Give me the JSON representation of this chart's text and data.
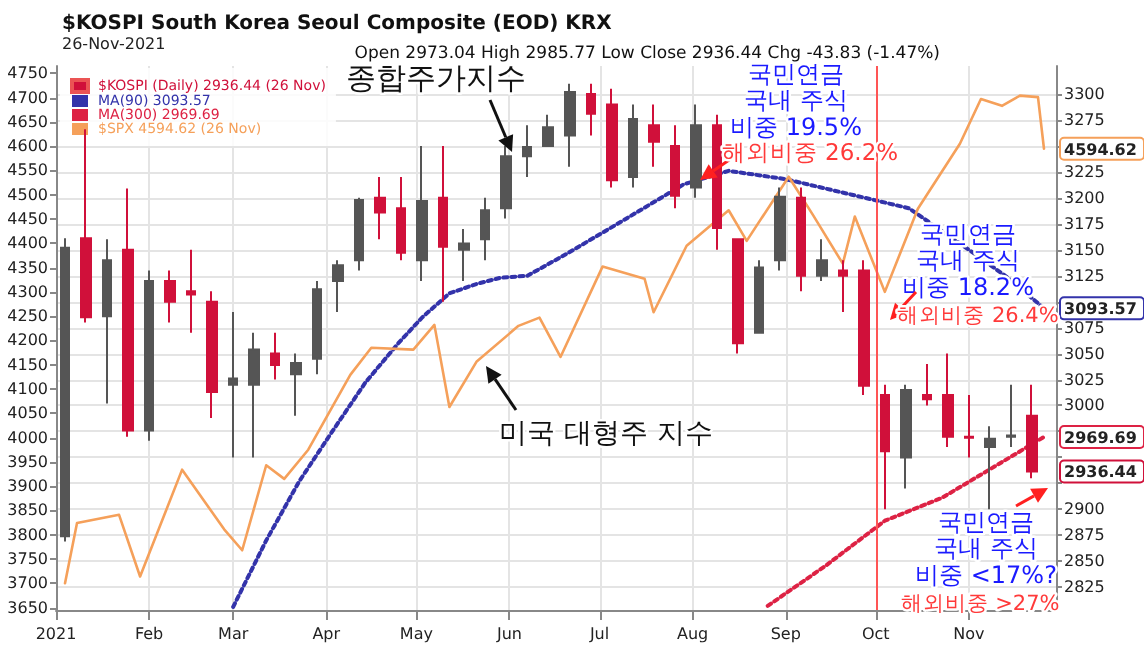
{
  "chart_data": {
    "type": "candlestick",
    "title": "$KOSPI South Korea Seoul Composite (EOD) KRX",
    "subtitle": "26-Nov-2021",
    "xlim": [
      "2021-01-01",
      "2021-11-30"
    ],
    "xticks": [
      {
        "value": "2021-01-01",
        "label": "2021"
      },
      {
        "value": "2021-02-01",
        "label": "Feb"
      },
      {
        "value": "2021-03-01",
        "label": "Mar"
      },
      {
        "value": "2021-04-01",
        "label": "Apr"
      },
      {
        "value": "2021-05-01",
        "label": "May"
      },
      {
        "value": "2021-06-01",
        "label": "Jun"
      },
      {
        "value": "2021-07-01",
        "label": "Jul"
      },
      {
        "value": "2021-08-01",
        "label": "Aug"
      },
      {
        "value": "2021-09-01",
        "label": "Sep"
      },
      {
        "value": "2021-10-01",
        "label": "Oct"
      },
      {
        "value": "2021-11-01",
        "label": "Nov"
      }
    ],
    "ylim": [
      3645,
      4765
    ],
    "yticks": [
      3650,
      3700,
      3750,
      3800,
      3850,
      3900,
      3950,
      4000,
      4050,
      4100,
      4150,
      4200,
      4250,
      4300,
      4350,
      4400,
      4450,
      4500,
      4550,
      4600,
      4650,
      4700,
      4750
    ],
    "y2lim": [
      2803,
      3327
    ],
    "y2ticks": [
      2825,
      2850,
      2875,
      2900,
      {
        "value": 2925,
        "label": null
      },
      {
        "value": 2950,
        "label": null
      },
      {
        "value": 2975,
        "label": null
      },
      3000,
      3025,
      3050,
      3075,
      {
        "value": 3100,
        "label": null
      },
      3125,
      3150,
      3175,
      3200,
      3225,
      {
        "value": 3250,
        "label": null
      },
      3275,
      3300
    ],
    "grid": true,
    "legend": "top left",
    "series": [
      {
        "name": "$KOSPI (Daily) 2936.44 (26 Nov)",
        "axis": "y2",
        "colors": [
          "#555555",
          "#d0103a",
          "#555555",
          "#d0103a",
          "#555555",
          "#d0103a",
          "#d0103a",
          "#d0103a",
          "#555555",
          "#555555",
          "#d0103a",
          "#555555",
          "#555555",
          "#555555",
          "#555555",
          "#d0103a",
          "#d0103a",
          "#555555",
          "#d0103a",
          "#555555",
          "#555555",
          "#555555",
          "#555555",
          "#555555",
          "#555555",
          "#d0103a",
          "#d0103a",
          "#555555",
          "#d0103a",
          "#d0103a",
          "#555555",
          "#d0103a",
          "#d0103a",
          "#555555",
          "#555555",
          "#d0103a",
          "#555555",
          "#d0103a",
          "#d0103a",
          "#d0103a",
          "#555555",
          "#d0103a",
          "#d0103a",
          "#d0103a",
          "#555555",
          "#555555",
          "#d0103a"
        ],
        "x": [
          "2021-01-04",
          "2021-01-11",
          "2021-01-18",
          "2021-01-25",
          "2021-02-01",
          "2021-02-08",
          "2021-02-15",
          "2021-02-22",
          "2021-03-01",
          "2021-03-08",
          "2021-03-15",
          "2021-03-22",
          "2021-03-29",
          "2021-04-05",
          "2021-04-12",
          "2021-04-19",
          "2021-04-26",
          "2021-05-03",
          "2021-05-10",
          "2021-05-17",
          "2021-05-24",
          "2021-05-31",
          "2021-06-07",
          "2021-06-14",
          "2021-06-21",
          "2021-06-28",
          "2021-07-05",
          "2021-07-12",
          "2021-07-19",
          "2021-07-26",
          "2021-08-02",
          "2021-08-09",
          "2021-08-16",
          "2021-08-23",
          "2021-08-30",
          "2021-09-06",
          "2021-09-13",
          "2021-09-20",
          "2021-09-27",
          "2021-10-04",
          "2021-10-11",
          "2021-10-18",
          "2021-10-25",
          "2021-11-01",
          "2021-11-08",
          "2021-11-15",
          "2021-11-22"
        ],
        "ohlc": [
          [
            2874,
            3161,
            2869,
            3152
          ],
          [
            3161,
            3266,
            3080,
            3085
          ],
          [
            3086,
            3160,
            3002,
            3140
          ],
          [
            3150,
            3209,
            2970,
            2976
          ],
          [
            2976,
            3130,
            2966,
            3120
          ],
          [
            3120,
            3130,
            3080,
            3100
          ],
          [
            3110,
            3150,
            3070,
            3107
          ],
          [
            3100,
            3110,
            2988,
            3013
          ],
          [
            3020,
            3090,
            2950,
            3026
          ],
          [
            3020,
            3070,
            2950,
            3054
          ],
          [
            3050,
            3070,
            3025,
            3039
          ],
          [
            3030,
            3050,
            2990,
            3041
          ],
          [
            3045,
            3120,
            3030,
            3112
          ],
          [
            3120,
            3140,
            3090,
            3135
          ],
          [
            3140,
            3200,
            3130,
            3198
          ],
          [
            3200,
            3220,
            3160,
            3186
          ],
          [
            3190,
            3220,
            3140,
            3147
          ],
          [
            3140,
            3250,
            3120,
            3197
          ],
          [
            3200,
            3250,
            3100,
            3153
          ],
          [
            3150,
            3170,
            3120,
            3156
          ],
          [
            3160,
            3200,
            3140,
            3188
          ],
          [
            3190,
            3250,
            3180,
            3240
          ],
          [
            3240,
            3270,
            3220,
            3249
          ],
          [
            3250,
            3280,
            3250,
            3268
          ],
          [
            3260,
            3310,
            3230,
            3302
          ],
          [
            3300,
            3310,
            3260,
            3281
          ],
          [
            3290,
            3305,
            3210,
            3217
          ],
          [
            3220,
            3290,
            3210,
            3276
          ],
          [
            3270,
            3290,
            3230,
            3254
          ],
          [
            3250,
            3270,
            3190,
            3202
          ],
          [
            3210,
            3290,
            3200,
            3270
          ],
          [
            3270,
            3280,
            3150,
            3171
          ],
          [
            3160,
            3160,
            3050,
            3060
          ],
          [
            3070,
            3140,
            3070,
            3133
          ],
          [
            3140,
            3210,
            3130,
            3201
          ],
          [
            3200,
            3210,
            3110,
            3125
          ],
          [
            3125,
            3160,
            3120,
            3140
          ],
          [
            3130,
            3140,
            3090,
            3125
          ],
          [
            3130,
            3140,
            3010,
            3019
          ],
          [
            3010,
            3020,
            2900,
            2956
          ],
          [
            2950,
            3020,
            2920,
            3015
          ],
          [
            3010,
            3040,
            3000,
            3006
          ],
          [
            3010,
            3050,
            2960,
            2970
          ],
          [
            2970,
            3010,
            2950,
            2969
          ],
          [
            2960,
            2980,
            2900,
            2968
          ],
          [
            2970,
            3020,
            2960,
            2971
          ],
          [
            2990,
            3020,
            2930,
            2936.44
          ]
        ],
        "value_labels": [
          null,
          null,
          null,
          null,
          null,
          null,
          null,
          null,
          null,
          null,
          null,
          null,
          null,
          null,
          null,
          null,
          null,
          null,
          null,
          null,
          null,
          null,
          null,
          null,
          null,
          null,
          null,
          null,
          null,
          null,
          null,
          null,
          null,
          null,
          null,
          null,
          null,
          null,
          null,
          null,
          null,
          null,
          null,
          null,
          null,
          null,
          "2936.44"
        ]
      },
      {
        "name": "MA(90) 3093.57",
        "type": "line",
        "axis": "y2",
        "color": "#3333aa",
        "line_style": "dotted",
        "x": [
          "2021-03-01",
          "2021-03-12",
          "2021-03-23",
          "2021-04-03",
          "2021-04-14",
          "2021-04-25",
          "2021-05-03",
          "2021-05-12",
          "2021-05-21",
          "2021-05-29",
          "2021-06-07",
          "2021-06-20",
          "2021-07-07",
          "2021-07-29",
          "2021-08-13",
          "2021-09-01",
          "2021-09-23",
          "2021-10-12",
          "2021-11-01",
          "2021-11-14",
          "2021-11-26"
        ],
        "values": [
          2806,
          2870,
          2927,
          2975,
          3022,
          3060,
          3085,
          3108,
          3117,
          3123,
          3125,
          3146,
          3175,
          3213,
          3226,
          3218,
          3203,
          3190,
          3150,
          3123,
          3093.57
        ],
        "value_labels": [
          null,
          null,
          null,
          null,
          null,
          null,
          null,
          null,
          null,
          null,
          null,
          null,
          null,
          null,
          null,
          null,
          null,
          null,
          null,
          null,
          "3093.57"
        ]
      },
      {
        "name": "MA(300) 2969.69",
        "type": "line",
        "axis": "y2",
        "color": "#dd2244",
        "line_style": "dotted",
        "x": [
          "2021-08-26",
          "2021-09-14",
          "2021-10-04",
          "2021-10-23",
          "2021-11-10",
          "2021-11-26"
        ],
        "values": [
          2807,
          2845,
          2889,
          2911,
          2942,
          2969.69
        ],
        "value_labels": [
          null,
          null,
          null,
          null,
          null,
          "2969.69"
        ]
      },
      {
        "name": "$SPX 4594.62 (26 Nov)",
        "type": "line",
        "color": "#f5a05a",
        "x": [
          "2021-01-04",
          "2021-01-08",
          "2021-01-22",
          "2021-01-29",
          "2021-02-12",
          "2021-02-26",
          "2021-03-04",
          "2021-03-12",
          "2021-03-18",
          "2021-03-26",
          "2021-04-09",
          "2021-04-16",
          "2021-04-30",
          "2021-05-07",
          "2021-05-12",
          "2021-05-21",
          "2021-06-04",
          "2021-06-11",
          "2021-06-18",
          "2021-07-02",
          "2021-07-16",
          "2021-07-19",
          "2021-07-30",
          "2021-08-13",
          "2021-08-19",
          "2021-09-02",
          "2021-09-10",
          "2021-09-20",
          "2021-09-24",
          "2021-10-04",
          "2021-10-15",
          "2021-10-29",
          "2021-11-05",
          "2021-11-12",
          "2021-11-18",
          "2021-11-24",
          "2021-11-26"
        ],
        "values": [
          3700,
          3824,
          3841,
          3714,
          3934,
          3811,
          3768,
          3943,
          3915,
          3975,
          4129,
          4185,
          4181,
          4232,
          4063,
          4156,
          4230,
          4247,
          4166,
          4352,
          4327,
          4258,
          4395,
          4468,
          4405,
          4537,
          4459,
          4358,
          4455,
          4300,
          4471,
          4605,
          4697,
          4683,
          4704,
          4701,
          4594.62
        ],
        "value_labels": [
          null,
          null,
          null,
          null,
          null,
          null,
          null,
          null,
          null,
          null,
          null,
          null,
          null,
          null,
          null,
          null,
          null,
          null,
          null,
          null,
          null,
          null,
          null,
          null,
          null,
          null,
          null,
          null,
          null,
          null,
          null,
          null,
          null,
          null,
          null,
          null,
          "4594.62"
        ]
      }
    ],
    "ref_lines": [
      {
        "axis": "x",
        "value": "2021-10-01",
        "color": "#ff5555"
      }
    ],
    "annotations": [
      "Open 2973.04 High 2985.77 Low Close 2936.44 Chg -43.83 (-1.47%)",
      "종합주가지수",
      "미국 대형주 지수",
      "국민연금\n국내 주식\n비중 19.5%",
      "해외비중 26.2%",
      "국민연금\n국내 주식\n비중 18.2%",
      "해외비중 26.4%",
      "국민연금\n국내 주식\n비중 <17%?",
      "해외비중 >27%"
    ]
  }
}
